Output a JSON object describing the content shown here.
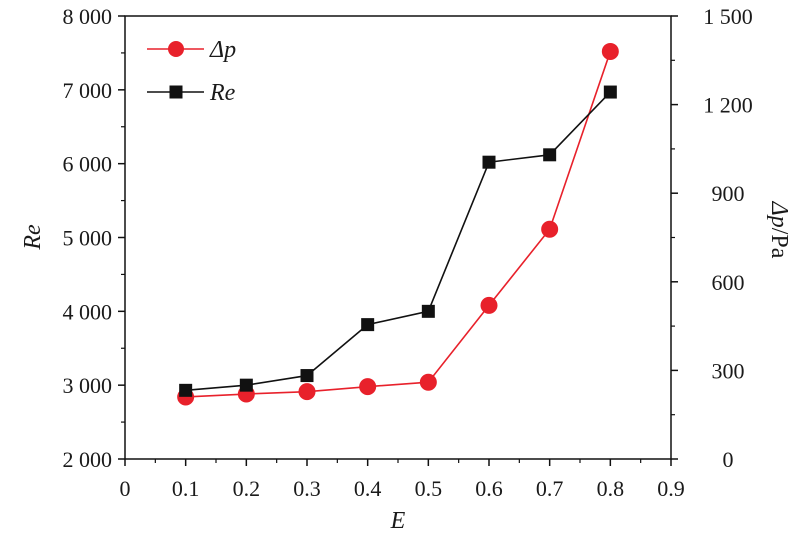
{
  "chart_data": {
    "type": "line",
    "x": [
      0.1,
      0.2,
      0.3,
      0.4,
      0.5,
      0.6,
      0.7,
      0.8
    ],
    "xlabel": "E",
    "xlim": [
      0,
      0.9
    ],
    "xticks": [
      "0",
      "0.1",
      "0.2",
      "0.3",
      "0.4",
      "0.5",
      "0.6",
      "0.7",
      "0.8",
      "0.9"
    ],
    "ylabel_left": "Re",
    "ylim_left": [
      2000,
      8000
    ],
    "yticks_left": [
      "2 000",
      "3 000",
      "4 000",
      "5 000",
      "6 000",
      "7 000",
      "8 000"
    ],
    "ylabel_right_symbol": "Δp",
    "ylabel_right_unit": "/Pa",
    "ylim_right": [
      0,
      1500
    ],
    "yticks_right": [
      "0",
      "300",
      "600",
      "900",
      "1 200",
      "1 500"
    ],
    "legend_position": "top-left",
    "grid": false,
    "series": [
      {
        "name": "Δp",
        "axis": "right",
        "marker": "circle",
        "color": "#e8212b",
        "values": [
          210,
          220,
          228,
          245,
          260,
          520,
          778,
          1380
        ]
      },
      {
        "name": "Re",
        "axis": "left",
        "marker": "square",
        "color": "#111111",
        "values": [
          2930,
          3000,
          3130,
          3820,
          4000,
          6020,
          6120,
          6970
        ]
      }
    ]
  }
}
